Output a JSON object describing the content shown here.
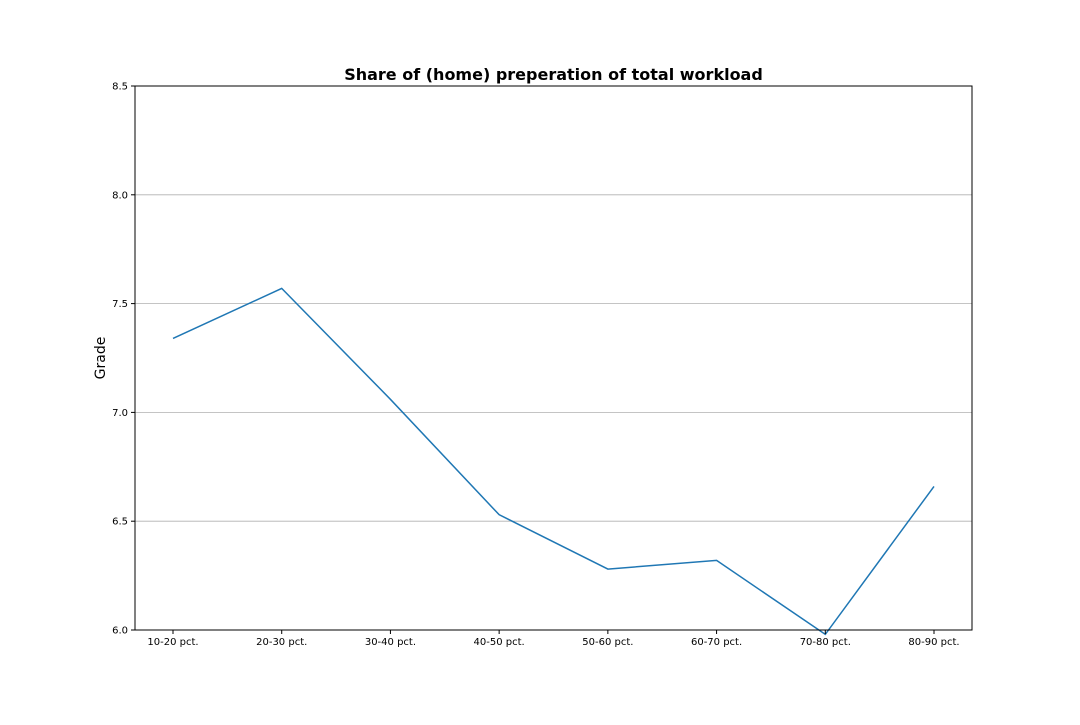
{
  "chart_data": {
    "type": "line",
    "title": "Share of (home) preperation of total workload",
    "xlabel": "",
    "ylabel": "Grade",
    "categories": [
      "10-20 pct.",
      "20-30 pct.",
      "30-40 pct.",
      "40-50 pct.",
      "50-60 pct.",
      "60-70 pct.",
      "70-80 pct.",
      "80-90 pct."
    ],
    "series": [
      {
        "values": [
          7.34,
          7.57,
          7.06,
          6.53,
          6.28,
          6.32,
          5.98,
          6.66
        ],
        "color": "#1f77b4"
      }
    ],
    "ylim": [
      6.0,
      8.5
    ],
    "yticks": [
      "6.0",
      "6.5",
      "7.0",
      "7.5",
      "8.0",
      "8.5"
    ],
    "grid": "y-axis",
    "legend": "none"
  }
}
